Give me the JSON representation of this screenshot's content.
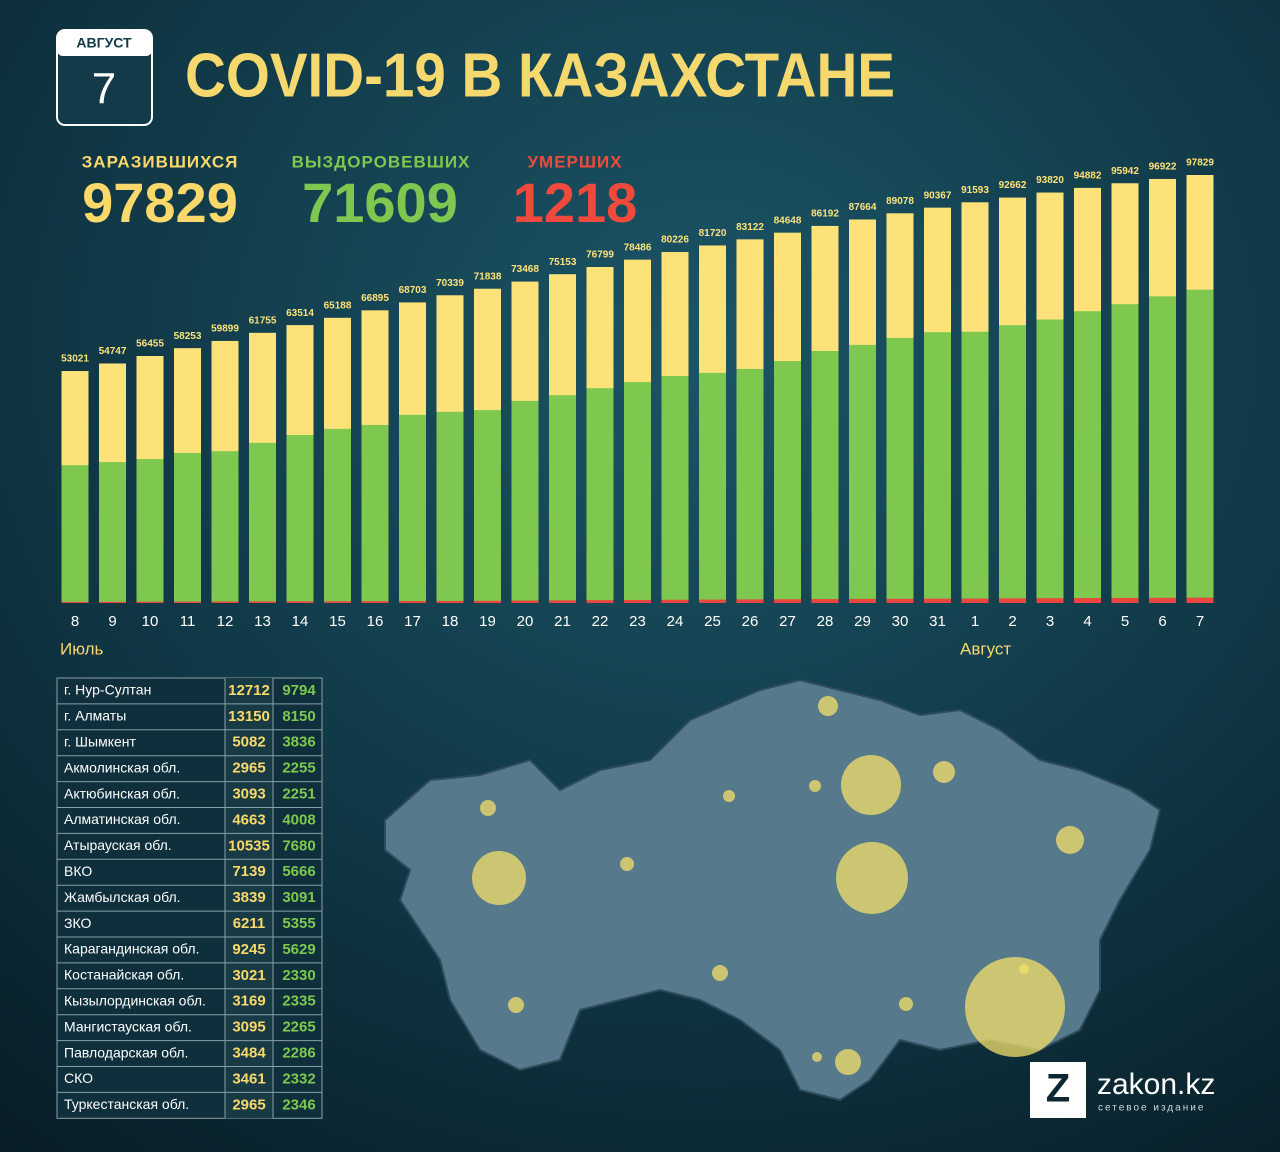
{
  "header": {
    "month": "АВГУСТ",
    "day": "7",
    "title": "COVID-19 В КАЗАХСТАНЕ"
  },
  "stats": [
    {
      "label": "ЗАРАЗИВШИХСЯ",
      "value": 97829,
      "color": "#fbd86a"
    },
    {
      "label": "ВЫЗДОРОВЕВШИХ",
      "value": 71609,
      "color": "#7ec850"
    },
    {
      "label": "УМЕРШИХ",
      "value": 1218,
      "color": "#ef4a3c"
    }
  ],
  "chart_data": {
    "type": "bar",
    "categories": [
      "8",
      "9",
      "10",
      "11",
      "12",
      "13",
      "14",
      "15",
      "16",
      "17",
      "18",
      "19",
      "20",
      "21",
      "22",
      "23",
      "24",
      "25",
      "26",
      "27",
      "28",
      "29",
      "30",
      "31",
      "1",
      "2",
      "3",
      "4",
      "5",
      "6",
      "7"
    ],
    "annotations": [
      {
        "text": "Июль",
        "category": 0
      },
      {
        "text": "Август",
        "category": 24
      }
    ],
    "series": [
      {
        "name": "Заразившихся",
        "color": "#fde27a",
        "values": [
          53021,
          54747,
          56455,
          58253,
          59899,
          61755,
          63514,
          65188,
          66895,
          68703,
          70339,
          71838,
          73468,
          75153,
          76799,
          78486,
          80226,
          81720,
          83122,
          84648,
          86192,
          87664,
          89078,
          90367,
          91593,
          92662,
          93820,
          94882,
          95942,
          96922,
          97829
        ],
        "labels": true
      },
      {
        "name": "Выздоровевших",
        "color": "#7ec850",
        "values": [
          31500,
          32200,
          32900,
          34300,
          34700,
          36600,
          38400,
          39800,
          40700,
          43000,
          43700,
          44100,
          46200,
          47500,
          49100,
          50500,
          51900,
          52600,
          53500,
          55300,
          57600,
          59000,
          60600,
          61900,
          62000,
          63500,
          64800,
          66700,
          68300,
          70100,
          71609
        ]
      },
      {
        "name": "Умерших",
        "color": "#e8463e",
        "values": [
          264,
          275,
          303,
          318,
          336,
          352,
          375,
          400,
          420,
          450,
          470,
          500,
          550,
          600,
          650,
          700,
          740,
          780,
          820,
          860,
          900,
          930,
          960,
          990,
          1020,
          1060,
          1100,
          1130,
          1160,
          1190,
          1218
        ]
      }
    ]
  },
  "table": {
    "rows": [
      [
        "г. Нур-Султан",
        12712,
        9794
      ],
      [
        "г. Алматы",
        13150,
        8150
      ],
      [
        "г. Шымкент",
        5082,
        3836
      ],
      [
        "Акмолинская обл.",
        2965,
        2255
      ],
      [
        "Актюбинская обл.",
        3093,
        2251
      ],
      [
        "Алматинская обл.",
        4663,
        4008
      ],
      [
        "Атырауская обл.",
        10535,
        7680
      ],
      [
        "ВКО",
        7139,
        5666
      ],
      [
        "Жамбылская обл.",
        3839,
        3091
      ],
      [
        "ЗКО",
        6211,
        5355
      ],
      [
        "Карагандинская обл.",
        9245,
        5629
      ],
      [
        "Костанайская обл.",
        3021,
        2330
      ],
      [
        "Кызылординская обл.",
        3169,
        2335
      ],
      [
        "Мангистауская обл.",
        3095,
        2265
      ],
      [
        "Павлодарская обл.",
        3484,
        2286
      ],
      [
        "СКО",
        3461,
        2332
      ],
      [
        "Туркестанская обл.",
        2965,
        2346
      ]
    ]
  },
  "logo": {
    "letter": "Z",
    "name": "zakon.kz",
    "tagline": "сетевое издание"
  }
}
